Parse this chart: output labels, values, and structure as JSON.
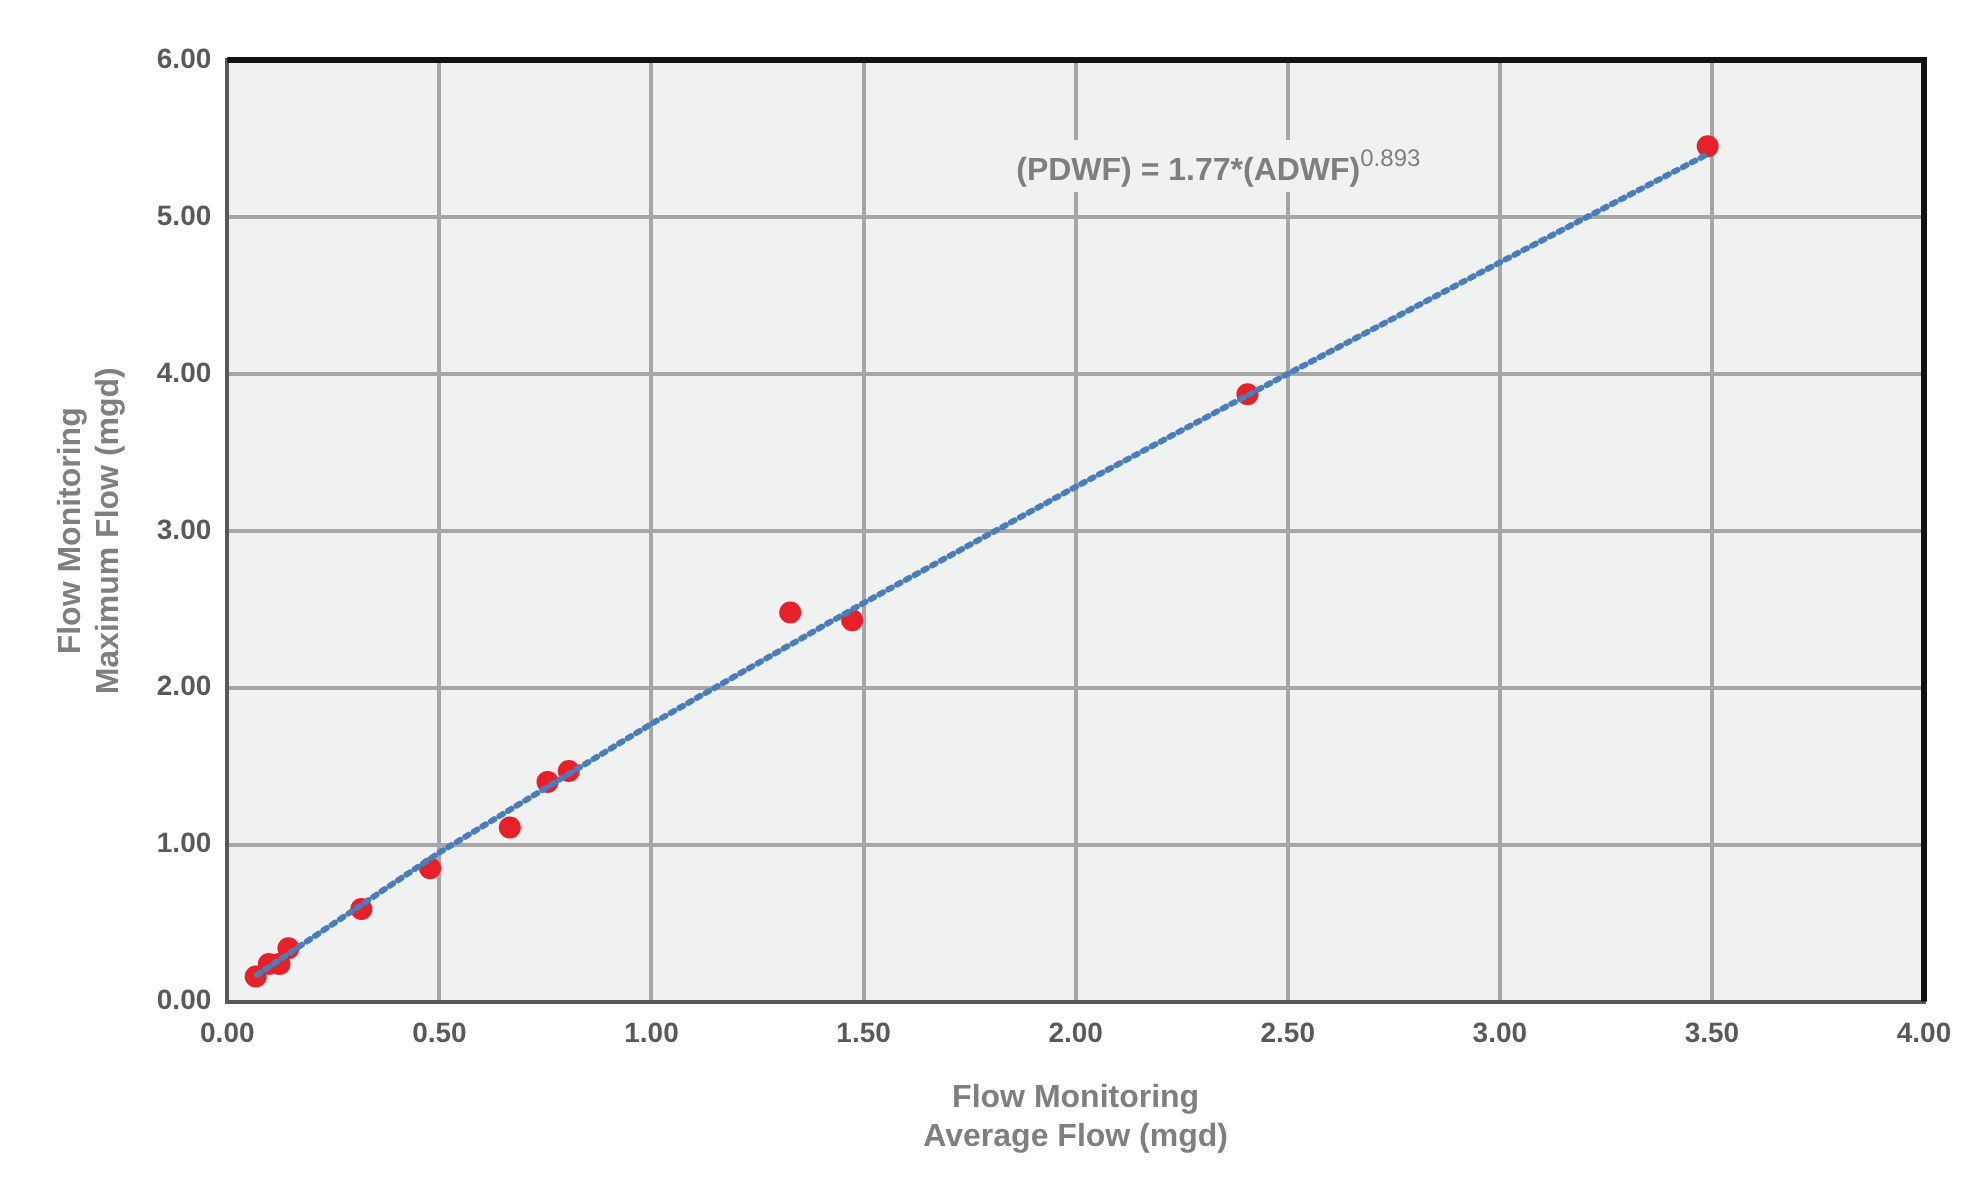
{
  "chart_data": {
    "type": "scatter",
    "xlabel": "Flow Monitoring\nAverage Flow (mgd)",
    "ylabel": "Flow Monitoring\nMaximum Flow (mgd)",
    "annotations": [
      "(PDWF) = 1.77*(ADWF)$^{0.893}$"
    ],
    "series": [
      {
        "type": "scatter",
        "color": "#e8202a",
        "marker": "circle",
        "x": [
          0.067,
          0.098,
          0.123,
          0.144,
          0.316,
          0.478,
          0.666,
          0.755,
          0.805,
          1.327,
          1.473,
          2.405,
          3.49
        ],
        "values": [
          0.16,
          0.24,
          0.24,
          0.34,
          0.59,
          0.85,
          1.11,
          1.4,
          1.47,
          2.48,
          2.43,
          3.87,
          5.45
        ]
      },
      {
        "type": "line",
        "color": "#4a7ebb",
        "marker": "none",
        "line_style": "dotted",
        "x": [
          0.07,
          0.5,
          1.0,
          1.5,
          2.0,
          2.5,
          3.0,
          3.49
        ],
        "values": [
          0.17,
          0.95,
          1.77,
          2.54,
          3.28,
          4.0,
          4.71,
          5.4
        ]
      }
    ],
    "xlim": [
      0,
      4
    ],
    "xticks": [
      {
        "value": 0,
        "label": "0.00"
      },
      {
        "value": 0.5,
        "label": "0.50"
      },
      {
        "value": 1,
        "label": "1.00"
      },
      {
        "value": 1.5,
        "label": "1.50"
      },
      {
        "value": 2,
        "label": "2.00"
      },
      {
        "value": 2.5,
        "label": "2.50"
      },
      {
        "value": 3,
        "label": "3.00"
      },
      {
        "value": 3.5,
        "label": "3.50"
      },
      {
        "value": 4,
        "label": "4.00"
      }
    ],
    "ylim": [
      0,
      6
    ],
    "yticks": [
      {
        "value": 0,
        "label": "0.00"
      },
      {
        "value": 1,
        "label": "1.00"
      },
      {
        "value": 2,
        "label": "2.00"
      },
      {
        "value": 3,
        "label": "3.00"
      },
      {
        "value": 4,
        "label": "4.00"
      },
      {
        "value": 5,
        "label": "5.00"
      },
      {
        "value": 6,
        "label": "6.00"
      }
    ],
    "grid": true,
    "legend": false
  }
}
